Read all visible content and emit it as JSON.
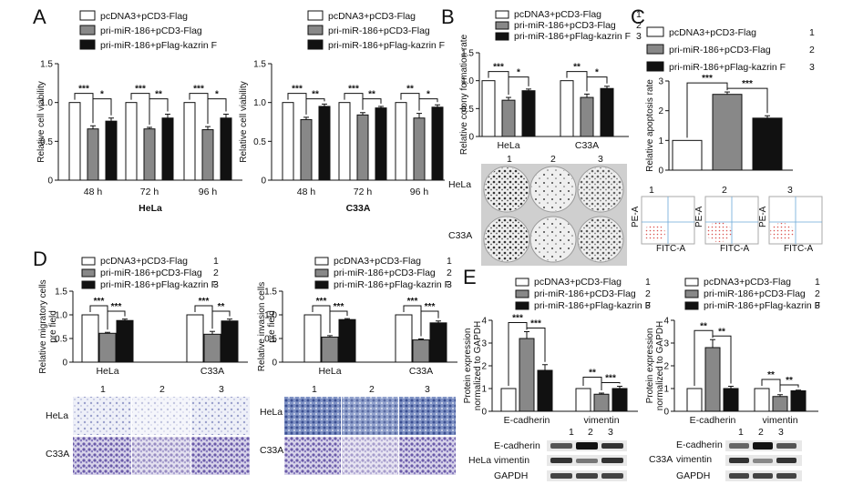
{
  "legend": {
    "series": [
      "pcDNA3+pCD3-Flag",
      "pri-miR-186+pCD3-Flag",
      "pri-miR-186+pFlag-kazrin F"
    ],
    "numbers": [
      "1",
      "2",
      "3"
    ],
    "colors": [
      "#ffffff",
      "#888888",
      "#111111"
    ]
  },
  "panels": {
    "A": "A",
    "B": "B",
    "C": "C",
    "D": "D",
    "E": "E"
  },
  "chart_data": [
    {
      "id": "A-HeLa",
      "type": "bar",
      "categories": [
        "48 h",
        "72 h",
        "96 h"
      ],
      "group_label": "HeLa",
      "ylabel": "Relative cell viability",
      "ylim": [
        0,
        1.5
      ],
      "yticks": [
        "0",
        "0.5",
        "1.0",
        "1.5"
      ],
      "series": [
        {
          "name": "pcDNA3+pCD3-Flag",
          "values": [
            1.0,
            1.0,
            1.0
          ]
        },
        {
          "name": "pri-miR-186+pCD3-Flag",
          "values": [
            0.66,
            0.66,
            0.65
          ]
        },
        {
          "name": "pri-miR-186+pFlag-kazrin F",
          "values": [
            0.76,
            0.8,
            0.8
          ]
        }
      ],
      "errors": [
        [
          0,
          0,
          0
        ],
        [
          0.04,
          0.02,
          0.04
        ],
        [
          0.04,
          0.05,
          0.05
        ]
      ],
      "significance": [
        [
          "***",
          "*"
        ],
        [
          "***",
          "**"
        ],
        [
          "***",
          "*"
        ]
      ]
    },
    {
      "id": "A-C33A",
      "type": "bar",
      "categories": [
        "48 h",
        "72 h",
        "96 h"
      ],
      "group_label": "C33A",
      "ylabel": "Relative cell viability",
      "ylim": [
        0,
        1.5
      ],
      "yticks": [
        "0",
        "0.5",
        "1.0",
        "1.5"
      ],
      "series": [
        {
          "name": "pcDNA3+pCD3-Flag",
          "values": [
            1.0,
            1.0,
            1.0
          ]
        },
        {
          "name": "pri-miR-186+pCD3-Flag",
          "values": [
            0.78,
            0.84,
            0.8
          ]
        },
        {
          "name": "pri-miR-186+pFlag-kazrin F",
          "values": [
            0.95,
            0.93,
            0.94
          ]
        }
      ],
      "errors": [
        [
          0,
          0,
          0
        ],
        [
          0.03,
          0.03,
          0.06
        ],
        [
          0.03,
          0.02,
          0.03
        ]
      ],
      "significance": [
        [
          "***",
          "**"
        ],
        [
          "***",
          "**"
        ],
        [
          "**",
          "*"
        ]
      ]
    },
    {
      "id": "B",
      "type": "bar",
      "categories": [
        "HeLa",
        "C33A"
      ],
      "ylabel": "Relative colony formation rate",
      "ylim": [
        0,
        1.5
      ],
      "yticks": [
        "0",
        "0.5",
        "1.0",
        "1.5"
      ],
      "series": [
        {
          "name": "pcDNA3+pCD3-Flag",
          "values": [
            1.0,
            1.0
          ]
        },
        {
          "name": "pri-miR-186+pCD3-Flag",
          "values": [
            0.65,
            0.7
          ]
        },
        {
          "name": "pri-miR-186+pFlag-kazrin F",
          "values": [
            0.82,
            0.86
          ]
        }
      ],
      "errors": [
        [
          0,
          0
        ],
        [
          0.05,
          0.06
        ],
        [
          0.03,
          0.04
        ]
      ],
      "significance": [
        [
          "***",
          "*"
        ],
        [
          "**",
          "*"
        ]
      ]
    },
    {
      "id": "C",
      "type": "bar",
      "categories": [
        ""
      ],
      "ylabel": "Relative apoptosis rate",
      "ylim": [
        0,
        3
      ],
      "yticks": [
        "0",
        "1",
        "2",
        "3"
      ],
      "series": [
        {
          "name": "pcDNA3+pCD3-Flag",
          "values": [
            1.0
          ]
        },
        {
          "name": "pri-miR-186+pCD3-Flag",
          "values": [
            2.55
          ]
        },
        {
          "name": "pri-miR-186+pFlag-kazrin F",
          "values": [
            1.75
          ]
        }
      ],
      "errors": [
        [
          0
        ],
        [
          0.08
        ],
        [
          0.08
        ]
      ],
      "significance": [
        [
          "***",
          "***"
        ]
      ]
    },
    {
      "id": "D-migration",
      "type": "bar",
      "categories": [
        "HeLa",
        "C33A"
      ],
      "ylabel": "Relative migratory cells pre field",
      "ylim": [
        0,
        1.5
      ],
      "yticks": [
        "0",
        "0.5",
        "1.0",
        "1.5"
      ],
      "series": [
        {
          "name": "pcDNA3+pCD3-Flag",
          "values": [
            1.0,
            1.0
          ]
        },
        {
          "name": "pri-miR-186+pCD3-Flag",
          "values": [
            0.61,
            0.59
          ]
        },
        {
          "name": "pri-miR-186+pFlag-kazrin F",
          "values": [
            0.88,
            0.87
          ]
        }
      ],
      "errors": [
        [
          0,
          0
        ],
        [
          0.02,
          0.06
        ],
        [
          0.03,
          0.04
        ]
      ],
      "significance": [
        [
          "***",
          "***"
        ],
        [
          "***",
          "**"
        ]
      ]
    },
    {
      "id": "D-invasion",
      "type": "bar",
      "categories": [
        "HeLa",
        "C33A"
      ],
      "ylabel": "Relative invasion cells pre field",
      "ylim": [
        0,
        1.5
      ],
      "yticks": [
        "0",
        "0.5",
        "1.0",
        "1.5"
      ],
      "series": [
        {
          "name": "pcDNA3+pCD3-Flag",
          "values": [
            1.0,
            1.0
          ]
        },
        {
          "name": "pri-miR-186+pCD3-Flag",
          "values": [
            0.53,
            0.47
          ]
        },
        {
          "name": "pri-miR-186+pFlag-kazrin F",
          "values": [
            0.9,
            0.83
          ]
        }
      ],
      "errors": [
        [
          0,
          0
        ],
        [
          0.03,
          0.02
        ],
        [
          0.02,
          0.04
        ]
      ],
      "significance": [
        [
          "***",
          "***"
        ],
        [
          "***",
          "***"
        ]
      ]
    },
    {
      "id": "E-HeLa",
      "type": "bar",
      "categories": [
        "E-cadherin",
        "vimentin"
      ],
      "ylabel": "Protein expression normalized to GAPDH",
      "ylim": [
        0,
        4
      ],
      "yticks": [
        "0",
        "1",
        "2",
        "3",
        "4"
      ],
      "series": [
        {
          "name": "pcDNA3+pCD3-Flag",
          "values": [
            1.0,
            1.0
          ]
        },
        {
          "name": "pri-miR-186+pCD3-Flag",
          "values": [
            3.2,
            0.75
          ]
        },
        {
          "name": "pri-miR-186+pFlag-kazrin F",
          "values": [
            1.8,
            1.0
          ]
        }
      ],
      "errors": [
        [
          0,
          0
        ],
        [
          0.3,
          0.05
        ],
        [
          0.25,
          0.1
        ]
      ],
      "significance": [
        [
          "***",
          "***"
        ],
        [
          "**",
          "***"
        ]
      ]
    },
    {
      "id": "E-C33A",
      "type": "bar",
      "categories": [
        "E-cadherin",
        "vimentin"
      ],
      "ylabel": "Protein expression normalized to GAPDH",
      "ylim": [
        0,
        4
      ],
      "yticks": [
        "0",
        "1",
        "2",
        "3",
        "4"
      ],
      "series": [
        {
          "name": "pcDNA3+pCD3-Flag",
          "values": [
            1.0,
            1.0
          ]
        },
        {
          "name": "pri-miR-186+pCD3-Flag",
          "values": [
            2.8,
            0.65
          ]
        },
        {
          "name": "pri-miR-186+pFlag-kazrin F",
          "values": [
            1.0,
            0.9
          ]
        }
      ],
      "errors": [
        [
          0,
          0
        ],
        [
          0.35,
          0.08
        ],
        [
          0.1,
          0.03
        ]
      ],
      "significance": [
        [
          "**",
          "**"
        ],
        [
          "**",
          "**"
        ]
      ]
    }
  ],
  "images": {
    "B_cols": [
      "1",
      "2",
      "3"
    ],
    "B_rows": [
      "HeLa",
      "C33A"
    ],
    "C_cols": [
      "1",
      "2",
      "3"
    ],
    "C_axis_x": "FITC-A",
    "C_axis_y": "PE-A",
    "D_cols": [
      "1",
      "2",
      "3"
    ],
    "D_rows": [
      "HeLa",
      "C33A"
    ],
    "E_cols": [
      "1",
      "2",
      "3"
    ],
    "E_hela_blot_labels": [
      "E-cadherin",
      "vimentin",
      "GAPDH"
    ],
    "E_hela_cell": "HeLa",
    "E_c33a_blot_labels": [
      "E-cadherin",
      "vimentin",
      "GAPDH"
    ],
    "E_c33a_cell": "C33A"
  }
}
